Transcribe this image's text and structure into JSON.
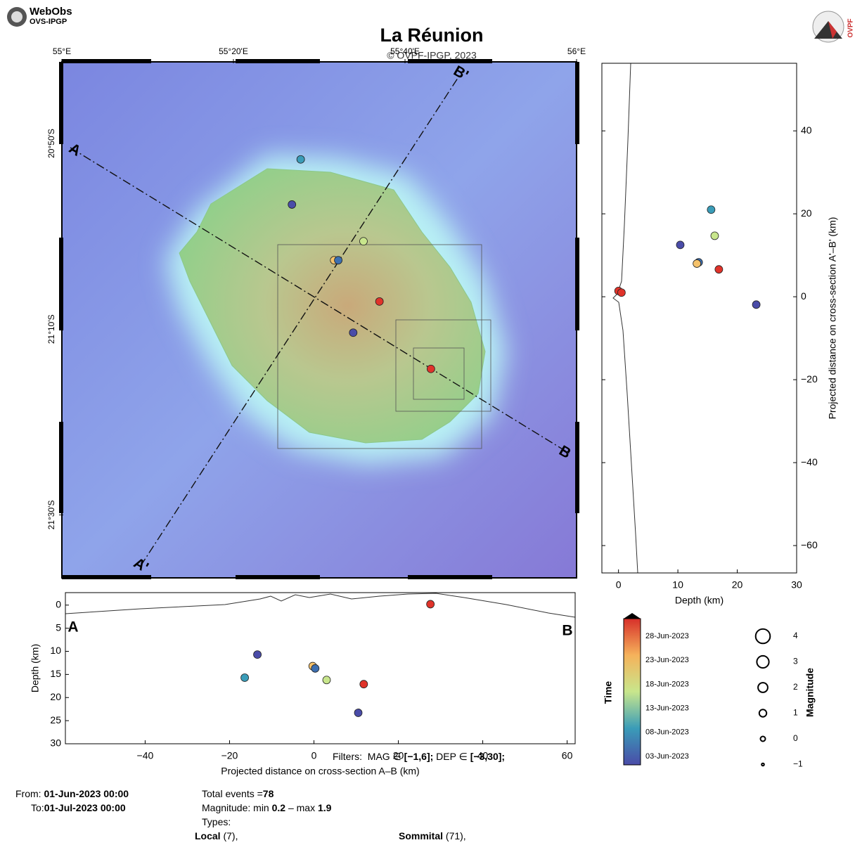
{
  "header": {
    "logo_title": "WebObs",
    "logo_subtitle": "OVS-IPGP",
    "right_logo": "OVPF"
  },
  "chart_data": [
    {
      "type": "map",
      "title": "La Réunion",
      "copyright": "© OVPF-IPGP, 2023",
      "xlim": [
        55,
        56
      ],
      "ylim": [
        -21.613,
        -20.687
      ],
      "xticks": [
        {
          "value": 55,
          "label": "55°E"
        },
        {
          "value": 55.3333,
          "label": "55°20'E"
        },
        {
          "value": 55.6667,
          "label": "55°40'E"
        },
        {
          "value": 56,
          "label": "56°E"
        }
      ],
      "yticks": [
        {
          "value": -20.8333,
          "label": "20°50'S"
        },
        {
          "value": -21.1667,
          "label": "21°10'S"
        },
        {
          "value": -21.5,
          "label": "21°30'S"
        }
      ],
      "section_labels": [
        "A",
        "B",
        "A'",
        "B'"
      ],
      "x": [
        55.464,
        55.447,
        55.586,
        55.529,
        55.537,
        55.617,
        55.566,
        55.717
      ],
      "y": [
        -20.862,
        -20.943,
        -21.009,
        -21.043,
        -21.043,
        -21.117,
        -21.173,
        -21.238
      ],
      "colors": [
        "#3a9cb8",
        "#4a4ca8",
        "#c8e68c",
        "#f5c26b",
        "#3d6fb0",
        "#e0332a",
        "#4a4ca8",
        "#e0332a"
      ]
    },
    {
      "type": "scatter",
      "xlabel": "Depth (km)",
      "ylabel": "Projected distance on cross-section A'–B' (km)",
      "xlim": [
        -2.8,
        30
      ],
      "ylim": [
        -66.6,
        56.3
      ],
      "xticks": [
        0,
        10,
        20,
        30
      ],
      "yticks": [
        40,
        20,
        0,
        {
          "value": -20,
          "label": "−20"
        },
        {
          "value": -40,
          "label": "−40"
        },
        {
          "value": -60,
          "label": "−60"
        }
      ],
      "x": [
        15.6,
        10.4,
        16.2,
        13.5,
        13.2,
        16.9,
        23.2,
        0,
        0.5
      ],
      "y": [
        21,
        12.5,
        14.7,
        8.3,
        8,
        6.6,
        -1.9,
        1.4,
        1
      ],
      "colors": [
        "#3a9cb8",
        "#4a4ca8",
        "#c8e68c",
        "#3d6fb0",
        "#f5c26b",
        "#e0332a",
        "#4a4ca8",
        "#e0332a",
        "#e0332a"
      ]
    },
    {
      "type": "scatter",
      "xlabel": "Projected distance on cross-section A–B (km)",
      "ylabel": "Depth (km)",
      "section_labels": [
        "A",
        "B"
      ],
      "xlim": [
        -58.9,
        61.9
      ],
      "ylim": [
        30,
        -2.7
      ],
      "xticks": [
        {
          "value": -40,
          "label": "−40"
        },
        {
          "value": -20,
          "label": "−20"
        },
        0,
        20,
        40,
        60
      ],
      "yticks": [
        0,
        5,
        10,
        15,
        20,
        25,
        30
      ],
      "x": [
        -16.4,
        -13.4,
        -0.3,
        0.3,
        3,
        11.8,
        10.5,
        27.6
      ],
      "y": [
        15.7,
        10.7,
        13.2,
        13.7,
        16.2,
        17.1,
        23.3,
        -0.2
      ],
      "colors": [
        "#3a9cb8",
        "#4a4ca8",
        "#f5c26b",
        "#3d6fb0",
        "#c8e68c",
        "#e0332a",
        "#4a4ca8",
        "#e0332a"
      ]
    }
  ],
  "colorbar": {
    "title": "Time",
    "labels": [
      "28-Jun-2023",
      "23-Jun-2023",
      "18-Jun-2023",
      "13-Jun-2023",
      "08-Jun-2023",
      "03-Jun-2023"
    ]
  },
  "magnitude_legend": {
    "title": "Magnitude",
    "values": [
      4,
      3,
      2,
      1,
      0,
      {
        "value": -1,
        "label": "−1"
      }
    ]
  },
  "filters": {
    "label": "Filters:",
    "items": [
      {
        "name": "MAG ∈",
        "range": "[−1,6];"
      },
      {
        "name": "DEP ∈",
        "range": "[−3,30];"
      }
    ]
  },
  "footer": {
    "from_label": "From:",
    "from": "01-Jun-2023 00:00",
    "to_label": "To:",
    "to": "01-Jul-2023 00:00",
    "total_label": "Total events =",
    "total": 78,
    "magnitude_label": "Magnitude: min",
    "mag_min": 0.2,
    "mag_sep": "– max",
    "mag_max": 1.9,
    "types_label": "Types:",
    "types": [
      {
        "name": "Local",
        "count": "(7),"
      },
      {
        "name": "Sommital",
        "count": "(71),"
      }
    ]
  }
}
